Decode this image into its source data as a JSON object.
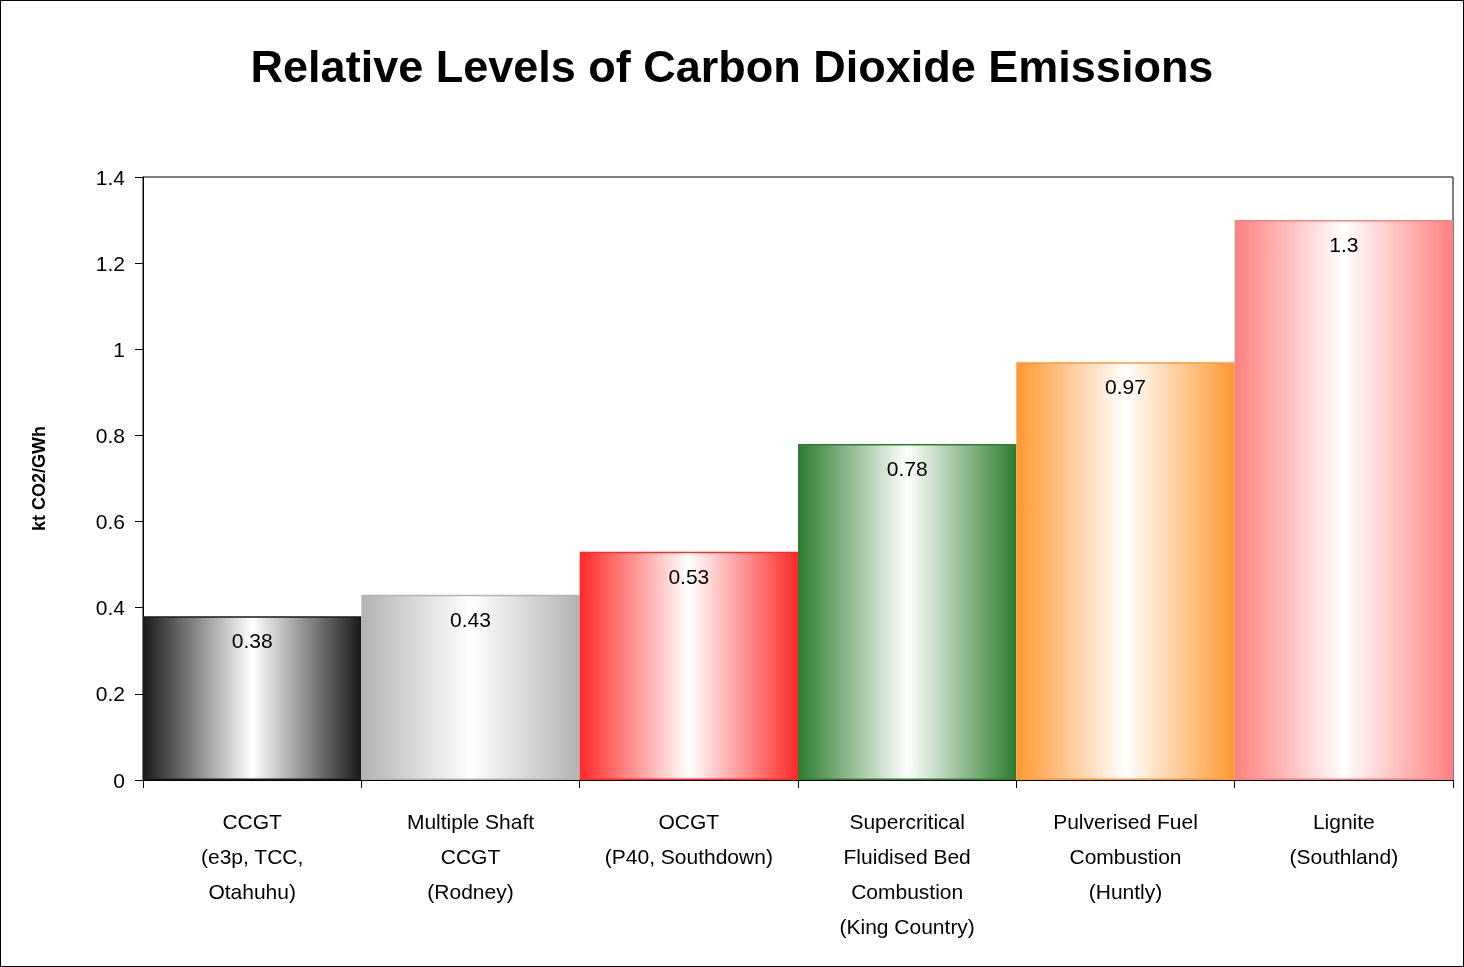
{
  "chart_data": {
    "type": "bar",
    "title": "Relative Levels of Carbon Dioxide Emissions",
    "ylabel": "kt CO2/GWh",
    "categories": [
      "CCGT\n(e3p, TCC,\nOtahuhu)",
      "Multiple Shaft\nCCGT\n(Rodney)",
      "OCGT\n(P40, Southdown)",
      "Supercritical\nFluidised Bed\nCombustion\n(King Country)",
      "Pulverised Fuel\nCombustion\n(Huntly)",
      "Lignite\n(Southland)"
    ],
    "values": [
      0.38,
      0.43,
      0.53,
      0.78,
      0.97,
      1.3
    ],
    "colors": [
      "#1a1a1a",
      "#b3b3b3",
      "#ff2a2a",
      "#2e7d2e",
      "#ff9933",
      "#ff8080"
    ],
    "ylim": [
      0,
      1.4
    ],
    "yticks": [
      0,
      0.2,
      0.4,
      0.6,
      0.8,
      1,
      1.2,
      1.4
    ],
    "data_labels": true
  }
}
